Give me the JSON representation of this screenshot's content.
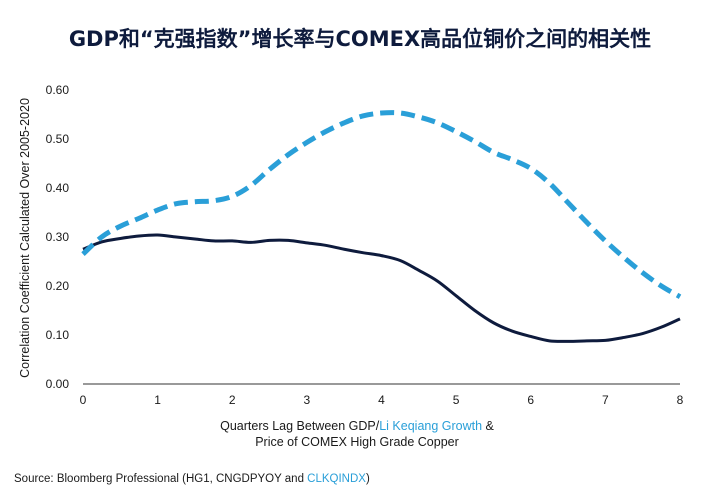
{
  "chart_data": {
    "type": "line",
    "title": "GDP和“克强指数”增长率与COMEX高品位铜价之间的相关性",
    "ylabel": "Correlation Coefficient Calculated Over 2005-2020",
    "xlabel": {
      "line1_prefix": "Quarters Lag Between GDP/",
      "line1_highlight": "Li Keqiang Growth",
      "line1_suffix": " &",
      "line2": "Price of COMEX High Grade Copper"
    },
    "source": {
      "prefix": "Source: Bloomberg Professional (HG1, CNGDPYOY and ",
      "highlight": "CLKQINDX",
      "suffix": ")"
    },
    "xlim": [
      0,
      8
    ],
    "ylim": [
      0,
      0.6
    ],
    "x_ticks": [
      "0",
      "1",
      "2",
      "3",
      "4",
      "5",
      "6",
      "7",
      "8"
    ],
    "y_ticks": [
      "0.00",
      "0.10",
      "0.20",
      "0.30",
      "0.40",
      "0.50",
      "0.60"
    ],
    "grid": false,
    "series": [
      {
        "style": "dashed",
        "color": "#2a9fd8",
        "x": [
          0,
          0.25,
          0.5,
          0.75,
          1.0,
          1.25,
          1.5,
          1.75,
          2.0,
          2.25,
          2.5,
          2.75,
          3.0,
          3.25,
          3.5,
          3.75,
          4.0,
          4.25,
          4.5,
          4.75,
          5.0,
          5.25,
          5.5,
          5.75,
          6.0,
          6.25,
          6.5,
          6.75,
          7.0,
          7.25,
          7.5,
          7.75,
          8.0
        ],
        "y": [
          0.265,
          0.3,
          0.322,
          0.338,
          0.355,
          0.368,
          0.372,
          0.374,
          0.383,
          0.405,
          0.438,
          0.468,
          0.493,
          0.515,
          0.533,
          0.547,
          0.553,
          0.553,
          0.545,
          0.533,
          0.515,
          0.495,
          0.473,
          0.458,
          0.44,
          0.41,
          0.37,
          0.33,
          0.292,
          0.258,
          0.227,
          0.2,
          0.178
        ]
      },
      {
        "style": "solid",
        "color": "#0e1b3d",
        "x": [
          0,
          0.25,
          0.5,
          0.75,
          1.0,
          1.25,
          1.5,
          1.75,
          2.0,
          2.25,
          2.5,
          2.75,
          3.0,
          3.25,
          3.5,
          3.75,
          4.0,
          4.25,
          4.5,
          4.75,
          5.0,
          5.25,
          5.5,
          5.75,
          6.0,
          6.25,
          6.5,
          6.75,
          7.0,
          7.25,
          7.5,
          7.75,
          8.0
        ],
        "y": [
          0.275,
          0.29,
          0.297,
          0.302,
          0.304,
          0.3,
          0.296,
          0.292,
          0.292,
          0.289,
          0.293,
          0.293,
          0.288,
          0.283,
          0.275,
          0.268,
          0.262,
          0.252,
          0.232,
          0.21,
          0.18,
          0.15,
          0.125,
          0.108,
          0.097,
          0.088,
          0.087,
          0.088,
          0.089,
          0.095,
          0.103,
          0.116,
          0.133
        ]
      }
    ]
  }
}
